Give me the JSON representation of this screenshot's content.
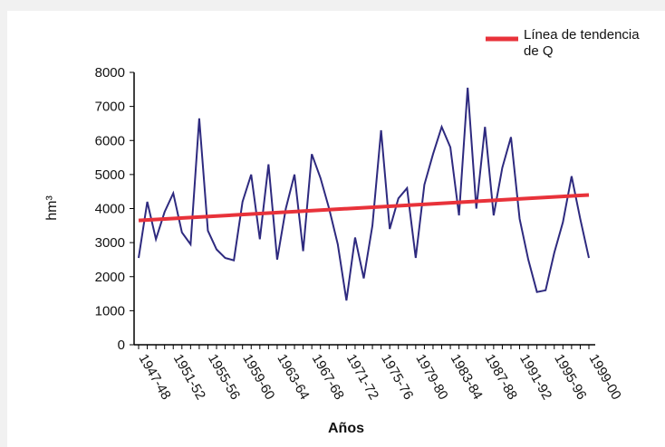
{
  "chart_data": {
    "type": "line",
    "x_label": "Años",
    "y_label": "hm³",
    "categories": [
      "1947-48",
      null,
      null,
      null,
      "1951-52",
      null,
      null,
      null,
      "1955-56",
      null,
      null,
      null,
      "1959-60",
      null,
      null,
      null,
      "1963-64",
      null,
      null,
      null,
      "1967-68",
      null,
      null,
      null,
      "1971-72",
      null,
      null,
      null,
      "1975-76",
      null,
      null,
      null,
      "1979-80",
      null,
      null,
      null,
      "1983-84",
      null,
      null,
      null,
      "1987-88",
      null,
      null,
      null,
      "1991-92",
      null,
      null,
      null,
      "1995-96",
      null,
      null,
      null,
      "1999-00"
    ],
    "series": [
      {
        "color": "#2e2a7f",
        "values": [
          2550,
          4200,
          3100,
          3900,
          4450,
          3300,
          2950,
          6650,
          3350,
          2800,
          2550,
          2480,
          4200,
          5000,
          3100,
          5300,
          2500,
          4000,
          5000,
          2750,
          5600,
          4900,
          4000,
          2950,
          1300,
          3150,
          1950,
          3500,
          6300,
          3400,
          4300,
          4600,
          2550,
          4700,
          5600,
          6400,
          5800,
          3800,
          7550,
          4000,
          6400,
          3800,
          5200,
          6100,
          3700,
          2500,
          1550,
          1600,
          2700,
          3600,
          4950,
          3700,
          2550
        ]
      }
    ],
    "trend": {
      "name": "Línea de tendencia de Q",
      "color": "#e8323a",
      "values": [
        3650,
        4400
      ]
    },
    "ylim": [
      0,
      8000
    ],
    "yticks": [
      0,
      1000,
      2000,
      3000,
      4000,
      5000,
      6000,
      7000,
      8000
    ]
  }
}
